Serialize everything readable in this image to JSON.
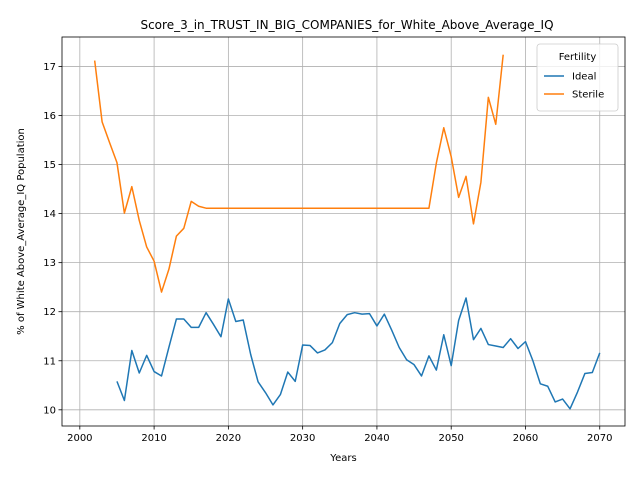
{
  "chart_data": {
    "type": "line",
    "title": "Score_3_in_TRUST_IN_BIG_COMPANIES_for_White_Above_Average_IQ",
    "xlabel": "Years",
    "ylabel": "% of White Above_Average_IQ Population",
    "xlim": [
      1997.6,
      2073.4
    ],
    "ylim": [
      9.67,
      17.6
    ],
    "xticks": [
      2000,
      2010,
      2020,
      2030,
      2040,
      2050,
      2060,
      2070
    ],
    "yticks": [
      10,
      11,
      12,
      13,
      14,
      15,
      16,
      17
    ],
    "grid": true,
    "legend": {
      "title": "Fertility",
      "position": "top-right"
    },
    "series": [
      {
        "name": "Ideal",
        "color": "#1f77b4",
        "x": [
          2005,
          2006,
          2007,
          2008,
          2009,
          2010,
          2011,
          2012,
          2013,
          2014,
          2015,
          2016,
          2017,
          2018,
          2019,
          2020,
          2021,
          2022,
          2023,
          2024,
          2025,
          2026,
          2027,
          2028,
          2029,
          2030,
          2031,
          2032,
          2033,
          2034,
          2035,
          2036,
          2037,
          2038,
          2039,
          2040,
          2041,
          2042,
          2043,
          2044,
          2045,
          2046,
          2047,
          2048,
          2049,
          2050,
          2051,
          2052,
          2053,
          2054,
          2055,
          2056,
          2057,
          2058,
          2059,
          2060,
          2061,
          2062,
          2063,
          2064,
          2065,
          2066,
          2067,
          2068,
          2069,
          2070
        ],
        "y": [
          10.58,
          10.19,
          11.21,
          10.75,
          11.11,
          10.78,
          10.69,
          11.28,
          11.85,
          11.85,
          11.68,
          11.68,
          11.98,
          11.74,
          11.49,
          12.26,
          11.8,
          11.83,
          11.13,
          10.57,
          10.35,
          10.1,
          10.31,
          10.77,
          10.58,
          11.32,
          11.31,
          11.16,
          11.22,
          11.37,
          11.76,
          11.94,
          11.98,
          11.95,
          11.96,
          11.71,
          11.95,
          11.62,
          11.27,
          11.02,
          10.92,
          10.69,
          11.1,
          10.81,
          11.53,
          10.9,
          11.82,
          12.28,
          11.43,
          11.66,
          11.33,
          11.3,
          11.27,
          11.45,
          11.25,
          11.39,
          11.0,
          10.53,
          10.48,
          10.16,
          10.22,
          10.02,
          10.36,
          10.74,
          10.76,
          11.16
        ]
      },
      {
        "name": "Sterile",
        "color": "#ff7f0e",
        "x": [
          2002,
          2003,
          2004,
          2005,
          2006,
          2007,
          2008,
          2009,
          2010,
          2011,
          2012,
          2013,
          2014,
          2015,
          2016,
          2017,
          2018,
          2019,
          2020,
          2025,
          2030,
          2035,
          2040,
          2045,
          2047,
          2048,
          2049,
          2050,
          2051,
          2052,
          2053,
          2054,
          2055,
          2056,
          2057
        ],
        "y": [
          17.12,
          15.87,
          15.45,
          15.04,
          14.01,
          14.55,
          13.86,
          13.32,
          13.03,
          12.4,
          12.87,
          13.54,
          13.7,
          14.25,
          14.15,
          14.11,
          14.11,
          14.11,
          14.11,
          14.11,
          14.11,
          14.11,
          14.11,
          14.11,
          14.11,
          15.03,
          15.75,
          15.16,
          14.33,
          14.76,
          13.79,
          14.64,
          16.37,
          15.82,
          17.24
        ]
      }
    ]
  }
}
